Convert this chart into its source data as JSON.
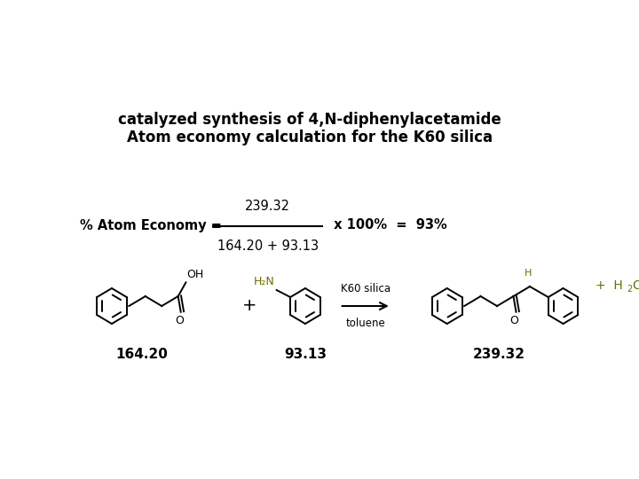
{
  "background_color": "#ffffff",
  "title_line1": "Atom economy calculation for the K60 silica",
  "title_line2": "catalyzed synthesis of 4,N-diphenylacetamide",
  "title_fontsize": 12,
  "mw1": "164.20",
  "mw2": "93.13",
  "mw_product": "239.32",
  "reagent_label": "K60 silica",
  "solvent_label": "toluene",
  "byproduct_label": "+ H",
  "byproduct_sub": "2",
  "byproduct_end": "O",
  "formula_numerator": "239.32",
  "formula_denominator": "164.20 + 93.13",
  "formula_result": " x 100%  =  93%",
  "formula_prefix": "% Atom Economy = ",
  "text_color": "#000000",
  "olive_color": "#6b6b00",
  "fig_width": 7.2,
  "fig_height": 5.4,
  "dpi": 100
}
